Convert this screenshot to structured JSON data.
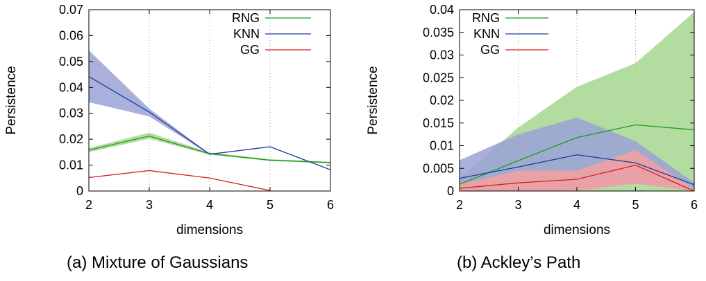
{
  "captions": [
    "(a)  Mixture of Gaussians",
    "(b)  Ackley’s Path"
  ],
  "chart_data": [
    {
      "type": "line",
      "xlabel": "dimensions",
      "ylabel": "Persistence",
      "xlim": [
        2,
        6
      ],
      "ylim": [
        0,
        0.07
      ],
      "xticks": [
        "2",
        "3",
        "4",
        "5",
        "6"
      ],
      "yticks": [
        "0",
        "0.01",
        "0.02",
        "0.03",
        "0.04",
        "0.05",
        "0.06",
        "0.07"
      ],
      "grid": "vertical dotted at x=3,4,5",
      "legend_position": "top-right",
      "x": [
        2,
        3,
        4,
        5,
        6
      ],
      "series": [
        {
          "name": "RNG",
          "color": "#1a9a1a",
          "band_color": "#a6d690",
          "values": [
            0.0158,
            0.0212,
            0.0144,
            0.0119,
            0.011
          ],
          "lower": [
            0.015,
            0.0202,
            0.014,
            0.0116,
            0.0107
          ],
          "upper": [
            0.0166,
            0.0225,
            0.0149,
            0.0123,
            0.0113
          ]
        },
        {
          "name": "KNN",
          "color": "#1f3c9a",
          "band_color": "#9aa2d6",
          "values": [
            0.0442,
            0.0305,
            0.0142,
            0.0171,
            0.0082
          ],
          "lower": [
            0.0343,
            0.0288,
            0.014,
            0.0169,
            0.008
          ],
          "upper": [
            0.0543,
            0.0318,
            0.0144,
            0.0173,
            0.0084
          ]
        },
        {
          "name": "GG",
          "color": "#d42020",
          "band_color": "#f4a0a0",
          "values": [
            0.0052,
            0.0079,
            0.005,
            0.0002,
            null
          ],
          "lower": null,
          "upper": null
        }
      ]
    },
    {
      "type": "line",
      "xlabel": "dimensions",
      "ylabel": "Persistence",
      "xlim": [
        2,
        6
      ],
      "ylim": [
        0,
        0.04
      ],
      "xticks": [
        "2",
        "3",
        "4",
        "5",
        "6"
      ],
      "yticks": [
        "0",
        "0.005",
        "0.01",
        "0.015",
        "0.02",
        "0.025",
        "0.03",
        "0.035",
        "0.04"
      ],
      "grid": "vertical dotted at x=3,4,5",
      "legend_position": "top-left",
      "x": [
        2,
        3,
        4,
        5,
        6
      ],
      "series": [
        {
          "name": "RNG",
          "color": "#1a9a1a",
          "band_color": "#a6d690",
          "values": [
            0.0015,
            0.0067,
            0.0118,
            0.0146,
            0.0135
          ],
          "lower": [
            0.0,
            0.0,
            0.0,
            0.0,
            0.0
          ],
          "upper": [
            0.0028,
            0.014,
            0.023,
            0.0282,
            0.0395
          ]
        },
        {
          "name": "KNN",
          "color": "#1f3c9a",
          "band_color": "#9aa2d6",
          "values": [
            0.0028,
            0.0053,
            0.008,
            0.0062,
            0.0014
          ],
          "lower": [
            0.0,
            0.0,
            0.0004,
            0.0017,
            0.0
          ],
          "upper": [
            0.0068,
            0.0125,
            0.0162,
            0.011,
            0.0018
          ]
        },
        {
          "name": "GG",
          "color": "#d42020",
          "band_color": "#f4a0a0",
          "values": [
            0.0006,
            0.0018,
            0.0026,
            0.0057,
            0.0
          ],
          "lower": [
            0.0,
            0.0,
            0.0,
            0.0016,
            0.0
          ],
          "upper": [
            0.0015,
            0.0045,
            0.0045,
            0.009,
            0.0004
          ]
        }
      ]
    }
  ]
}
